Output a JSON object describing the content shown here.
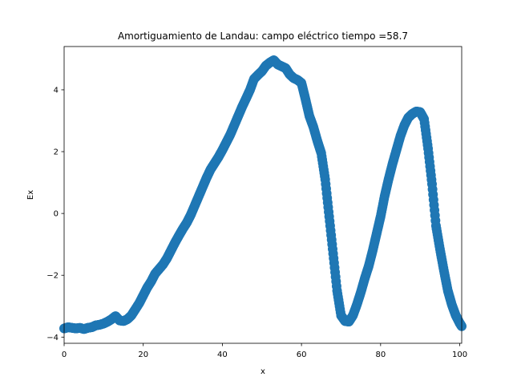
{
  "chart_data": {
    "type": "scatter",
    "title": "Amortiguamiento de Landau: campo eléctrico  tiempo =58.7",
    "xlabel": "x",
    "ylabel": "Ex",
    "xlim": [
      0,
      100.5
    ],
    "ylim": [
      -4.2,
      5.4
    ],
    "x_ticks": [
      0,
      20,
      40,
      60,
      80,
      100
    ],
    "y_ticks": [
      -4,
      -2,
      0,
      2,
      4
    ],
    "x_tick_labels": [
      "0",
      "20",
      "40",
      "60",
      "80",
      "100"
    ],
    "y_tick_labels": [
      "−4",
      "−2",
      "0",
      "2",
      "4"
    ],
    "grid": false,
    "legend": "none",
    "marker_color": "#1f77b4",
    "series": [
      {
        "x": [
          0,
          1,
          2,
          3,
          4,
          5,
          6,
          7,
          8,
          9,
          10,
          11,
          12,
          13,
          14,
          15,
          16,
          17,
          18,
          19,
          20,
          21,
          22,
          23,
          24,
          25,
          26,
          27,
          28,
          29,
          30,
          31,
          32,
          33,
          34,
          35,
          36,
          37,
          38,
          39,
          40,
          41,
          42,
          43,
          44,
          45,
          46,
          47,
          48,
          49,
          50,
          51,
          52,
          53,
          54,
          55,
          56,
          57,
          58,
          59,
          60,
          61,
          62,
          63,
          64,
          65,
          66,
          67,
          68,
          69,
          70,
          71,
          72,
          73,
          74,
          75,
          76,
          77,
          78,
          79,
          80,
          81,
          82,
          83,
          84,
          85,
          86,
          87,
          88,
          89,
          90,
          91,
          92,
          93,
          94,
          95,
          96,
          97,
          98,
          99,
          100,
          100.5
        ],
        "y": [
          -3.72,
          -3.68,
          -3.7,
          -3.72,
          -3.7,
          -3.74,
          -3.7,
          -3.68,
          -3.62,
          -3.6,
          -3.56,
          -3.5,
          -3.42,
          -3.32,
          -3.46,
          -3.48,
          -3.42,
          -3.3,
          -3.1,
          -2.9,
          -2.65,
          -2.4,
          -2.2,
          -1.95,
          -1.8,
          -1.65,
          -1.45,
          -1.2,
          -0.95,
          -0.72,
          -0.5,
          -0.3,
          -0.05,
          0.25,
          0.55,
          0.85,
          1.15,
          1.42,
          1.62,
          1.82,
          2.05,
          2.3,
          2.55,
          2.85,
          3.15,
          3.45,
          3.72,
          4.0,
          4.35,
          4.48,
          4.6,
          4.78,
          4.88,
          4.96,
          4.82,
          4.76,
          4.7,
          4.5,
          4.38,
          4.32,
          4.22,
          3.7,
          3.15,
          2.8,
          2.35,
          1.95,
          1.1,
          -0.1,
          -1.3,
          -2.5,
          -3.3,
          -3.48,
          -3.5,
          -3.3,
          -2.95,
          -2.55,
          -2.1,
          -1.7,
          -1.2,
          -0.65,
          -0.1,
          0.55,
          1.1,
          1.6,
          2.05,
          2.5,
          2.85,
          3.1,
          3.22,
          3.3,
          3.28,
          3.05,
          2.1,
          0.95,
          -0.4,
          -1.15,
          -1.85,
          -2.5,
          -2.95,
          -3.3,
          -3.55,
          -3.65
        ]
      }
    ]
  }
}
